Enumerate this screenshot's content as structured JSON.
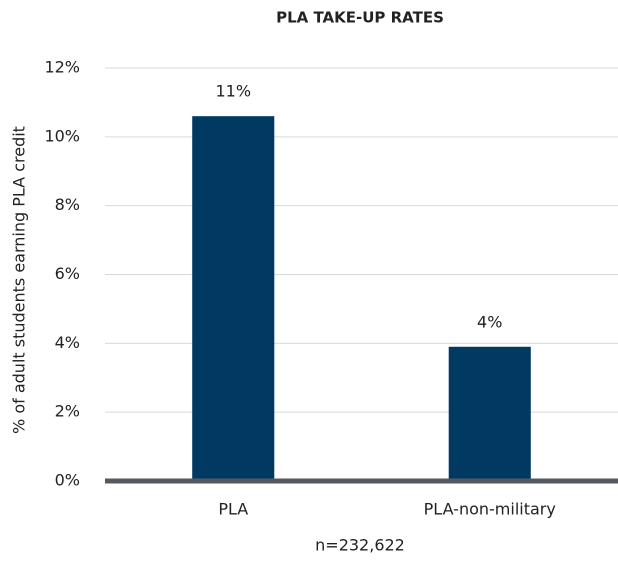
{
  "chart_data": {
    "type": "bar",
    "title": "PLA TAKE-UP RATES",
    "x_label": "n=232,622",
    "y_label": "% of adult students earning PLA credit",
    "categories": [
      "PLA",
      "PLA-non-military"
    ],
    "values": [
      10.6,
      3.9
    ],
    "value_labels": [
      "11%",
      "4%"
    ],
    "color": "#003a63",
    "ylim": [
      0,
      12
    ],
    "yticks": [
      {
        "value": 0,
        "label": "0%"
      },
      {
        "value": 2,
        "label": "2%"
      },
      {
        "value": 4,
        "label": "4%"
      },
      {
        "value": 6,
        "label": "6%"
      },
      {
        "value": 8,
        "label": "8%"
      },
      {
        "value": 10,
        "label": "10%"
      },
      {
        "value": 12,
        "label": "12%"
      }
    ],
    "grid": true
  }
}
